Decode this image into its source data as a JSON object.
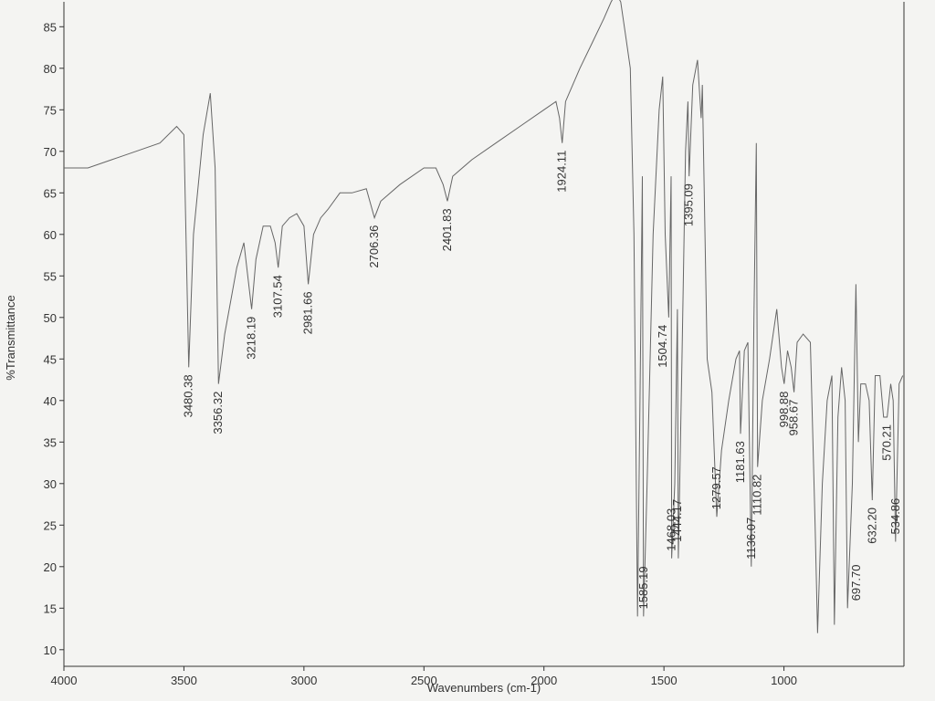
{
  "chart_data": {
    "type": "line",
    "xlabel": "Wavenumbers (cm-1)",
    "ylabel": "%Transmittance",
    "xlim": [
      4000,
      500
    ],
    "ylim": [
      8,
      88
    ],
    "xticks": [
      4000,
      3500,
      3000,
      2500,
      2000,
      1500,
      1000
    ],
    "yticks": [
      10,
      15,
      20,
      25,
      30,
      35,
      40,
      45,
      50,
      55,
      60,
      65,
      70,
      75,
      80,
      85
    ],
    "x": [
      4000,
      3900,
      3800,
      3700,
      3600,
      3530,
      3500,
      3480,
      3460,
      3420,
      3390,
      3370,
      3356,
      3330,
      3280,
      3250,
      3230,
      3218,
      3200,
      3170,
      3140,
      3120,
      3107,
      3090,
      3060,
      3030,
      3000,
      2982,
      2960,
      2930,
      2900,
      2850,
      2800,
      2740,
      2706,
      2680,
      2600,
      2500,
      2450,
      2420,
      2402,
      2380,
      2300,
      2200,
      2100,
      2000,
      1950,
      1935,
      1924,
      1910,
      1850,
      1800,
      1750,
      1720,
      1700,
      1680,
      1660,
      1640,
      1625,
      1610,
      1600,
      1590,
      1585,
      1570,
      1545,
      1520,
      1505,
      1495,
      1480,
      1470,
      1468,
      1455,
      1444,
      1440,
      1425,
      1410,
      1400,
      1395,
      1380,
      1360,
      1345,
      1340,
      1320,
      1300,
      1280,
      1260,
      1230,
      1200,
      1185,
      1181,
      1165,
      1150,
      1136,
      1125,
      1115,
      1110,
      1090,
      1060,
      1030,
      1010,
      999,
      985,
      970,
      958,
      945,
      920,
      890,
      870,
      860,
      840,
      820,
      800,
      790,
      775,
      760,
      745,
      735,
      715,
      700,
      690,
      680,
      660,
      645,
      632,
      620,
      600,
      585,
      570,
      555,
      545,
      535,
      520,
      505
    ],
    "series": [
      {
        "name": "spectrum",
        "color": "#666666",
        "values": [
          68,
          68,
          69,
          70,
          71,
          73,
          72,
          44,
          60,
          72,
          77,
          68,
          42,
          48,
          56,
          59,
          54,
          51,
          57,
          61,
          61,
          59,
          56,
          61,
          62,
          62.5,
          61,
          54,
          60,
          62,
          63,
          65,
          65,
          65.5,
          62,
          64,
          66,
          68,
          68,
          66,
          64,
          67,
          69,
          71,
          73,
          75,
          76,
          74,
          71,
          76,
          80,
          83,
          86,
          88,
          89,
          88,
          84,
          80,
          60,
          14,
          40,
          67,
          14,
          30,
          60,
          75,
          79,
          60,
          50,
          67,
          21,
          30,
          51,
          21,
          45,
          70,
          76,
          67,
          78,
          81,
          74,
          78,
          45,
          41,
          26,
          34,
          40,
          45,
          46,
          36,
          46,
          47,
          20,
          50,
          71,
          32,
          40,
          45,
          51,
          44,
          42,
          46,
          44,
          41,
          47,
          48,
          47,
          25,
          12,
          30,
          40,
          43,
          13,
          38,
          44,
          40,
          15,
          30,
          54,
          35,
          42,
          42,
          40,
          28,
          43,
          43,
          38,
          38,
          42,
          40,
          23,
          42,
          43
        ]
      }
    ],
    "annotations": [
      {
        "label": "3480.38",
        "x": 3480.38,
        "y": 44
      },
      {
        "label": "3356.32",
        "x": 3356.32,
        "y": 42
      },
      {
        "label": "3218.19",
        "x": 3218.19,
        "y": 51
      },
      {
        "label": "3107.54",
        "x": 3107.54,
        "y": 56
      },
      {
        "label": "2981.66",
        "x": 2981.66,
        "y": 54
      },
      {
        "label": "2706.36",
        "x": 2706.36,
        "y": 62
      },
      {
        "label": "2401.83",
        "x": 2401.83,
        "y": 64
      },
      {
        "label": "1924.11",
        "x": 1924.11,
        "y": 71
      },
      {
        "label": "1585.19",
        "x": 1585.19,
        "y": 14
      },
      {
        "label": "1504.74",
        "x": 1504.74,
        "y": 50
      },
      {
        "label": "1468.03",
        "x": 1468.03,
        "y": 21
      },
      {
        "label": "1444.17",
        "x": 1444.17,
        "y": 29
      },
      {
        "label": "1395.09",
        "x": 1395.09,
        "y": 67
      },
      {
        "label": "1279.57",
        "x": 1279.57,
        "y": 26
      },
      {
        "label": "1181.63",
        "x": 1181.63,
        "y": 36
      },
      {
        "label": "1136.07",
        "x": 1136.07,
        "y": 20
      },
      {
        "label": "1110.82",
        "x": 1110.82,
        "y": 32
      },
      {
        "label": "998.88",
        "x": 998.88,
        "y": 42
      },
      {
        "label": "958.67",
        "x": 958.67,
        "y": 41
      },
      {
        "label": "697.70",
        "x": 697.7,
        "y": 15
      },
      {
        "label": "632.20",
        "x": 632.2,
        "y": 28
      },
      {
        "label": "570.21",
        "x": 570.21,
        "y": 38
      },
      {
        "label": "534.86",
        "x": 534.86,
        "y": 23
      }
    ]
  }
}
